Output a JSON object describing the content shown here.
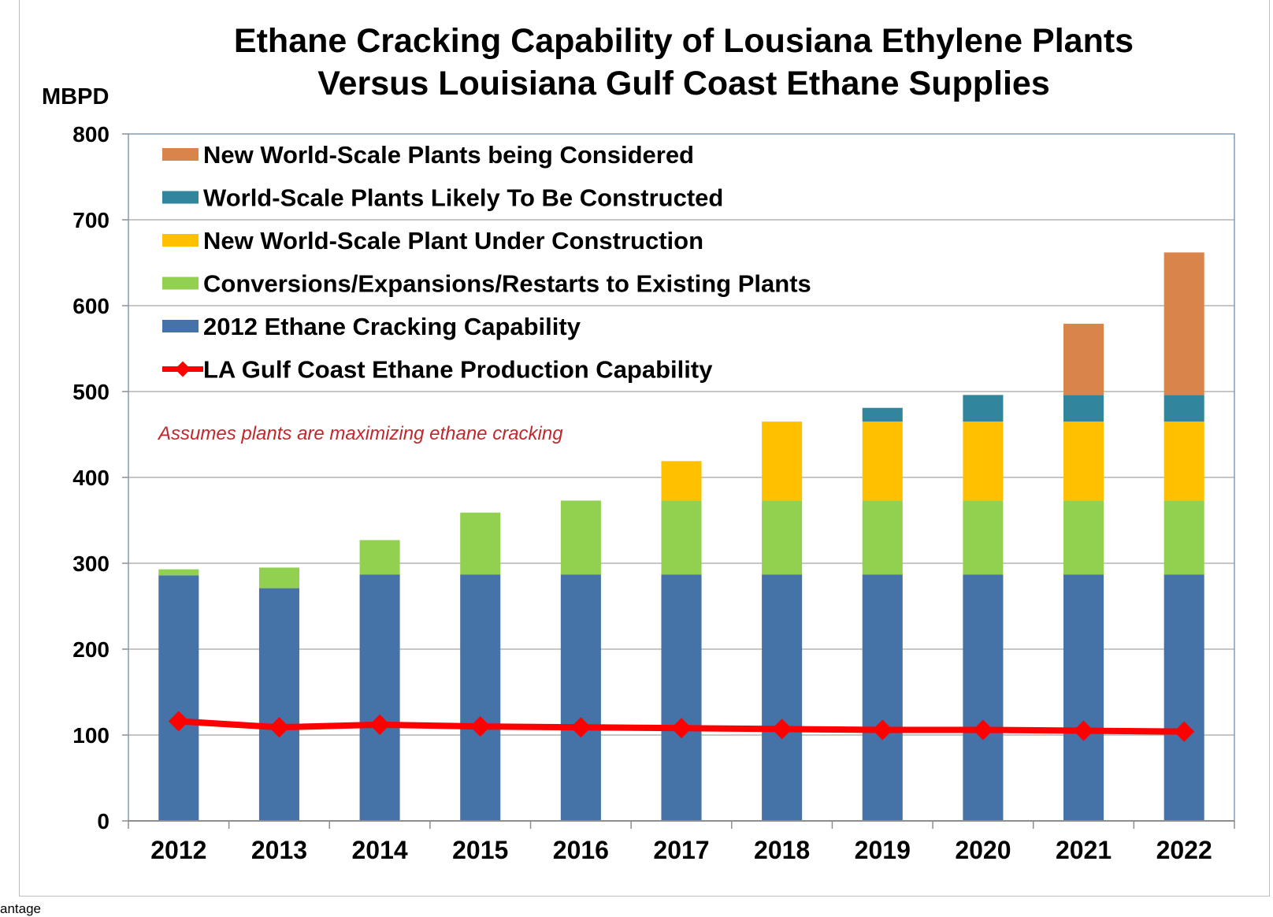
{
  "chart_data": {
    "type": "bar",
    "stacked": true,
    "title": [
      "Ethane Cracking Capability of Lousiana Ethylene Plants",
      "Versus Louisiana Gulf Coast Ethane Supplies"
    ],
    "unit_label": "MBPD",
    "xlabel": "",
    "ylabel": "MBPD",
    "ylim": [
      0,
      800
    ],
    "yticks": [
      0,
      100,
      200,
      300,
      400,
      500,
      600,
      700,
      800
    ],
    "categories": [
      "2012",
      "2013",
      "2014",
      "2015",
      "2016",
      "2017",
      "2018",
      "2019",
      "2020",
      "2021",
      "2022"
    ],
    "grid": true,
    "legend_position": "top-left",
    "note": "Assumes plants are maximizing ethane cracking",
    "series": [
      {
        "name": "2012 Ethane Cracking Capability",
        "type": "bar",
        "color": "#4572a7",
        "values": [
          286,
          271,
          287,
          287,
          287,
          287,
          287,
          287,
          287,
          287,
          287
        ]
      },
      {
        "name": "Conversions/Expansions/Restarts to Existing Plants",
        "type": "bar",
        "color": "#92d050",
        "values": [
          7,
          24,
          40,
          72,
          86,
          86,
          86,
          86,
          86,
          86,
          86
        ]
      },
      {
        "name": "New World-Scale Plant Under Construction",
        "type": "bar",
        "color": "#ffc000",
        "values": [
          0,
          0,
          0,
          0,
          0,
          46,
          92,
          92,
          92,
          92,
          92
        ]
      },
      {
        "name": "World-Scale Plants Likely To Be Constructed",
        "type": "bar",
        "color": "#31859c",
        "values": [
          0,
          0,
          0,
          0,
          0,
          0,
          0,
          16,
          31,
          31,
          31
        ]
      },
      {
        "name": "New World-Scale Plants being Considered",
        "type": "bar",
        "color": "#d9844a",
        "values": [
          0,
          0,
          0,
          0,
          0,
          0,
          0,
          0,
          0,
          83,
          166
        ]
      },
      {
        "name": "LA Gulf Coast Ethane Production Capability",
        "type": "line",
        "color": "#ff0000",
        "values": [
          116,
          109,
          112,
          110,
          109,
          108,
          107,
          106,
          106,
          105,
          104
        ]
      }
    ],
    "legend_order": [
      "New World-Scale Plants being Considered",
      "World-Scale Plants Likely To Be Constructed",
      "New World-Scale Plant Under Construction",
      "Conversions/Expansions/Restarts to Existing Plants",
      "2012 Ethane Cracking Capability",
      "LA Gulf Coast Ethane Production Capability"
    ]
  },
  "source_fragment": "antage"
}
